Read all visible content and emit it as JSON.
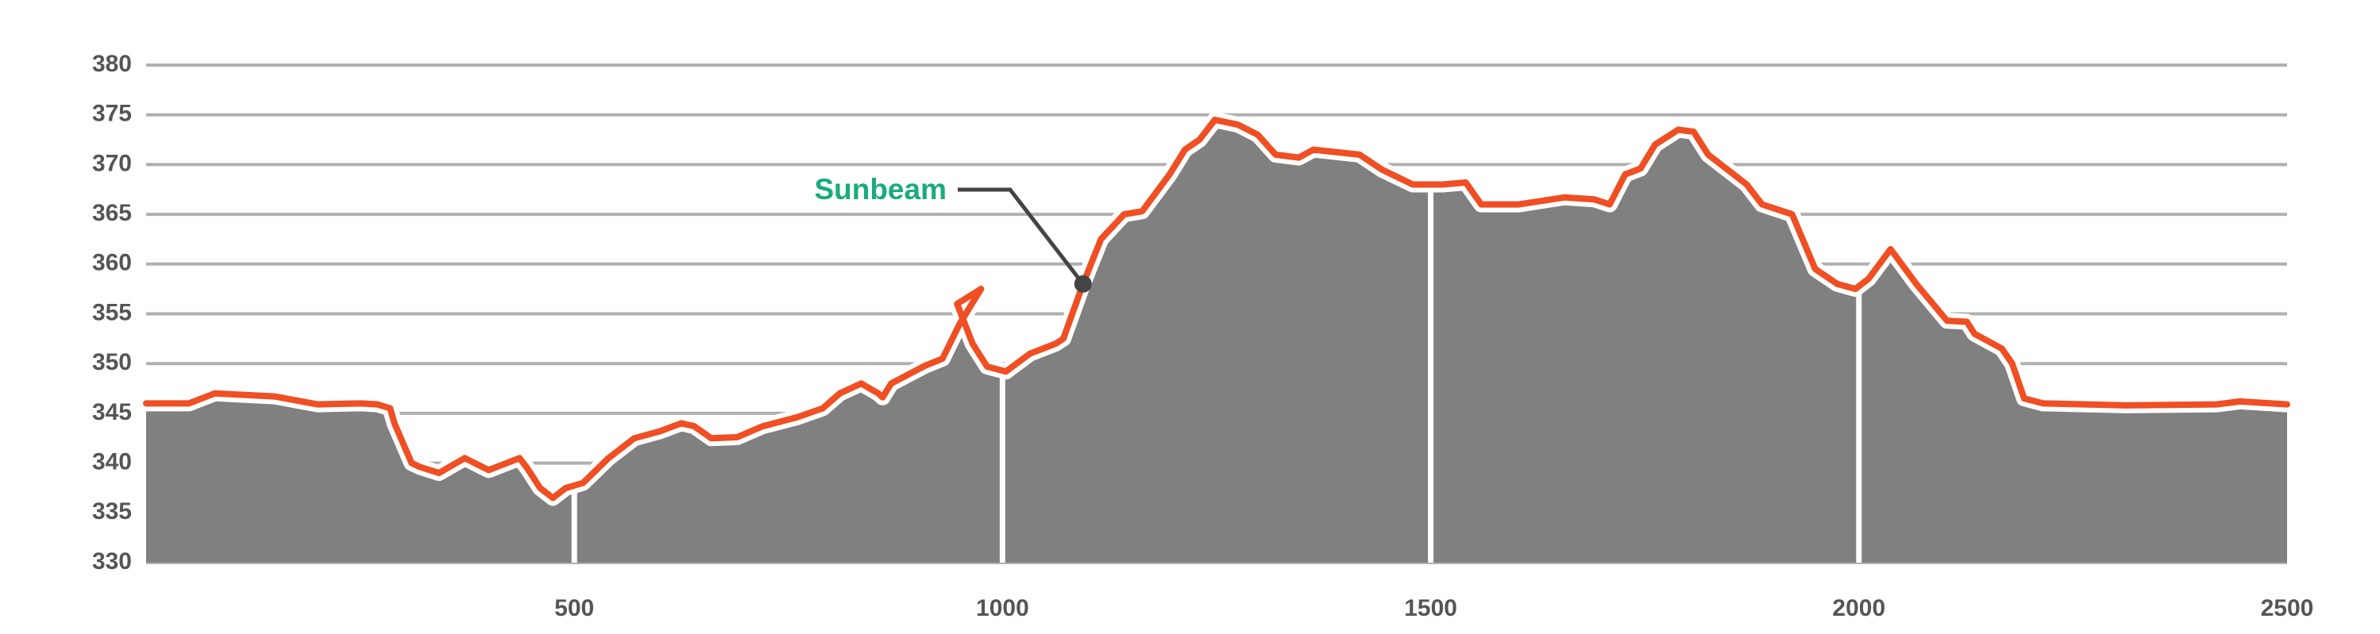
{
  "chart_data": {
    "type": "area",
    "x": [
      0,
      50,
      80,
      150,
      200,
      250,
      270,
      285,
      290,
      300,
      310,
      320,
      342,
      372,
      400,
      436,
      445,
      460,
      475,
      490,
      510,
      540,
      570,
      600,
      625,
      640,
      660,
      690,
      720,
      760,
      790,
      810,
      835,
      855,
      860,
      870,
      910,
      930,
      950,
      975,
      947,
      965,
      982,
      1004,
      1032,
      1062,
      1071,
      1094,
      1115,
      1142,
      1163,
      1195,
      1213,
      1230,
      1248,
      1275,
      1298,
      1319,
      1346,
      1363,
      1417,
      1443,
      1479,
      1514,
      1541,
      1559,
      1603,
      1656,
      1691,
      1709,
      1727,
      1745,
      1762,
      1789,
      1807,
      1824,
      1869,
      1887,
      1922,
      1949,
      1975,
      1996,
      2011,
      2037,
      2067,
      2103,
      2126,
      2135,
      2167,
      2179,
      2193,
      2215,
      2312,
      2418,
      2445,
      2500
    ],
    "series": [
      {
        "color": "#f04e23",
        "fill": "#808080",
        "values": [
          346,
          346,
          347,
          346.7,
          345.9,
          346,
          345.9,
          345.5,
          344,
          342,
          340,
          339.6,
          339,
          340.5,
          339.3,
          340.5,
          339.5,
          337.5,
          336.5,
          337.5,
          338,
          340.5,
          342.5,
          343.2,
          344,
          343.7,
          342.5,
          342.6,
          343.7,
          344.6,
          345.5,
          347,
          348,
          347,
          346.6,
          348,
          349.8,
          350.5,
          354,
          357.5,
          356,
          352,
          349.7,
          349.2,
          351,
          352,
          352.5,
          358,
          362.5,
          365,
          365.3,
          369,
          371.5,
          372.5,
          374.5,
          374,
          373,
          371,
          370.7,
          371.5,
          371,
          369.5,
          368,
          368,
          368.2,
          366,
          366,
          366.7,
          366.5,
          366,
          369,
          369.6,
          372,
          373.5,
          373.3,
          371,
          368,
          366,
          365,
          359.5,
          358,
          357.5,
          358.5,
          361.5,
          358,
          354.3,
          354.2,
          353,
          351.5,
          350,
          346.5,
          346,
          345.8,
          345.9,
          346.2,
          345.9
        ]
      }
    ],
    "xlim": [
      0,
      2500
    ],
    "ylim": [
      330,
      380
    ],
    "xticks": [
      500,
      1000,
      1500,
      2000,
      2500
    ],
    "yticks": [
      330,
      335,
      340,
      345,
      350,
      355,
      360,
      365,
      370,
      375,
      380
    ],
    "grid": true,
    "annotation": {
      "text": "Sunbeam",
      "x": 1094,
      "y": 358,
      "color": "#1aab7c"
    }
  }
}
